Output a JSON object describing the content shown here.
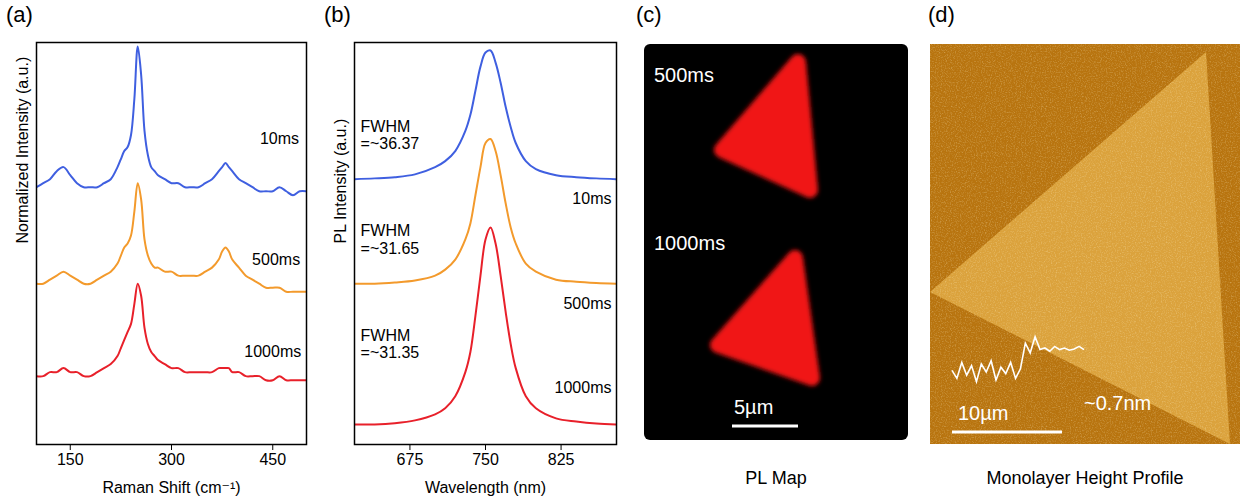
{
  "chart_data": [
    {
      "type": "line",
      "title": "(a)",
      "x_label": "Raman Shift (cm⁻¹)",
      "y_label": "Normalized Intensity (a.u.)",
      "tick_labels": "x",
      "xlim": [
        100,
        500
      ],
      "xticks": [
        150,
        300,
        450
      ],
      "ylim": [
        0,
        10
      ],
      "x": [
        100,
        110,
        120,
        130,
        140,
        150,
        160,
        170,
        180,
        190,
        200,
        210,
        220,
        225,
        230,
        235,
        240,
        245,
        250,
        255,
        260,
        265,
        270,
        275,
        280,
        290,
        300,
        310,
        320,
        330,
        340,
        350,
        360,
        370,
        375,
        380,
        385,
        390,
        400,
        410,
        420,
        430,
        440,
        450,
        460,
        470,
        480,
        490,
        500
      ],
      "series": [
        {
          "name": "10ms",
          "color": "#3f5fe0",
          "label_at": [
            460,
            7.6
          ],
          "values": [
            6.4,
            6.5,
            6.6,
            6.8,
            6.9,
            6.7,
            6.5,
            6.4,
            6.4,
            6.4,
            6.5,
            6.6,
            6.9,
            7.1,
            7.3,
            7.4,
            7.7,
            8.6,
            9.9,
            9.2,
            7.8,
            7.2,
            6.9,
            6.8,
            6.7,
            6.6,
            6.5,
            6.5,
            6.4,
            6.4,
            6.4,
            6.5,
            6.6,
            6.8,
            6.9,
            7.0,
            6.9,
            6.8,
            6.6,
            6.5,
            6.4,
            6.3,
            6.3,
            6.3,
            6.4,
            6.3,
            6.2,
            6.3,
            6.3
          ]
        },
        {
          "name": "500ms",
          "color": "#f39a2c",
          "label_at": [
            455,
            4.6
          ],
          "values": [
            4.0,
            4.0,
            4.1,
            4.2,
            4.3,
            4.2,
            4.1,
            4.0,
            4.0,
            4.1,
            4.2,
            4.3,
            4.5,
            4.7,
            4.9,
            5.0,
            5.2,
            5.8,
            6.5,
            6.1,
            5.1,
            4.7,
            4.5,
            4.4,
            4.4,
            4.3,
            4.3,
            4.2,
            4.2,
            4.2,
            4.2,
            4.3,
            4.4,
            4.6,
            4.8,
            4.9,
            4.8,
            4.6,
            4.4,
            4.2,
            4.1,
            4.0,
            3.9,
            3.9,
            3.9,
            3.8,
            3.8,
            3.8,
            3.8
          ]
        },
        {
          "name": "1000ms",
          "color": "#e8202a",
          "label_at": [
            450,
            2.3
          ],
          "values": [
            1.7,
            1.7,
            1.8,
            1.8,
            1.9,
            1.8,
            1.8,
            1.7,
            1.7,
            1.8,
            1.9,
            2.0,
            2.2,
            2.4,
            2.6,
            2.8,
            3.0,
            3.5,
            4.0,
            3.7,
            2.9,
            2.5,
            2.3,
            2.2,
            2.1,
            2.0,
            1.9,
            1.9,
            1.8,
            1.8,
            1.8,
            1.8,
            1.8,
            1.9,
            1.9,
            1.9,
            1.9,
            1.8,
            1.8,
            1.7,
            1.7,
            1.7,
            1.6,
            1.6,
            1.7,
            1.6,
            1.6,
            1.6,
            1.6
          ]
        }
      ]
    },
    {
      "type": "line",
      "title": "(b)",
      "x_label": "Wavelength (nm)",
      "y_label": "PL Intensity (a.u.)",
      "tick_labels": "x",
      "xlim": [
        620,
        880
      ],
      "xticks": [
        675,
        750,
        825
      ],
      "ylim": [
        0,
        10
      ],
      "x": [
        620,
        640,
        660,
        680,
        700,
        710,
        720,
        730,
        735,
        740,
        745,
        750,
        755,
        760,
        765,
        770,
        775,
        780,
        790,
        800,
        820,
        840,
        860,
        880
      ],
      "series": [
        {
          "name": "10ms",
          "color": "#3f5fe0",
          "label_at": [
            875,
            6.1
          ],
          "values": [
            6.6,
            6.62,
            6.65,
            6.72,
            6.9,
            7.05,
            7.3,
            7.8,
            8.2,
            8.8,
            9.4,
            9.75,
            9.8,
            9.5,
            9.0,
            8.4,
            7.9,
            7.5,
            7.05,
            6.85,
            6.7,
            6.65,
            6.62,
            6.6
          ]
        },
        {
          "name": "500ms",
          "color": "#f39a2c",
          "label_at": [
            875,
            3.5
          ],
          "values": [
            4.0,
            4.0,
            4.03,
            4.08,
            4.2,
            4.35,
            4.6,
            5.1,
            5.5,
            6.2,
            6.9,
            7.5,
            7.6,
            7.3,
            6.7,
            6.0,
            5.4,
            5.0,
            4.5,
            4.3,
            4.1,
            4.05,
            4.02,
            4.0
          ]
        },
        {
          "name": "1000ms",
          "color": "#e8202a",
          "label_at": [
            875,
            1.4
          ],
          "values": [
            0.5,
            0.5,
            0.53,
            0.6,
            0.75,
            0.9,
            1.2,
            1.8,
            2.3,
            3.2,
            4.2,
            5.1,
            5.4,
            5.0,
            4.2,
            3.3,
            2.5,
            1.9,
            1.2,
            0.9,
            0.65,
            0.57,
            0.52,
            0.5
          ]
        }
      ],
      "annotations": [
        {
          "text": "FWHM =~36.37",
          "x": 626,
          "y": 7.7
        },
        {
          "text": "FWHM =~31.65",
          "x": 626,
          "y": 5.1
        },
        {
          "text": "FWHM =~31.35",
          "x": 626,
          "y": 2.5
        }
      ]
    },
    {
      "type": "image",
      "title": "(c)",
      "caption": "PL Map",
      "color": "#f01818",
      "annotations": [
        "500ms",
        "1000ms"
      ],
      "scale_bar": "5µm"
    },
    {
      "type": "image",
      "title": "(d)",
      "caption": "Monolayer Height Profile",
      "annotations": [
        "~0.7nm"
      ],
      "scale_bar": "10µm",
      "height_profile": [
        0.05,
        -0.2,
        0.3,
        -0.1,
        0.2,
        -0.3,
        0.25,
        0.0,
        0.35,
        -0.25,
        0.15,
        -0.05,
        0.3,
        -0.2,
        0.1,
        0.9,
        0.6,
        1.1,
        0.7,
        0.75,
        0.65,
        0.8,
        0.7,
        0.75,
        0.68,
        0.72,
        0.8,
        0.7
      ]
    }
  ]
}
